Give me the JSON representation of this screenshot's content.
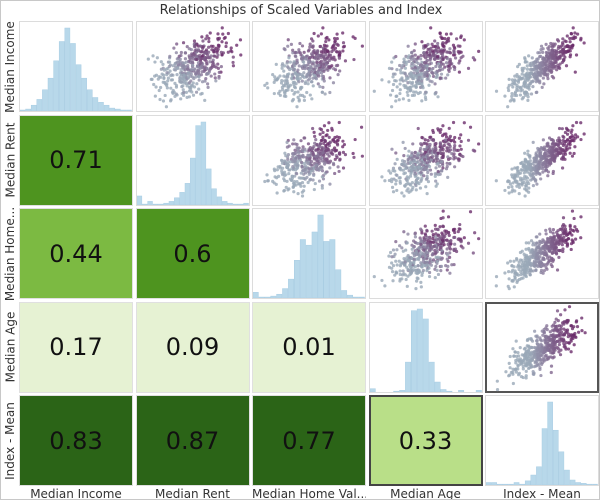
{
  "chart_data": {
    "type": "scatter-matrix",
    "title": "Relationships of Scaled Variables and Index",
    "variables": [
      "Median Income",
      "Median Rent",
      "Median Home Value",
      "Median Age",
      "Index - Mean"
    ],
    "x_labels": [
      "Median Income",
      "Median Rent",
      "Median Home Val...",
      "Median Age",
      "Index - Mean"
    ],
    "y_labels": [
      "Median Income",
      "Median Rent",
      "Median Home...",
      "Median Age",
      "Index - Mean"
    ],
    "correlations": [
      {
        "row": 1,
        "col": 0,
        "value": "0.71"
      },
      {
        "row": 2,
        "col": 0,
        "value": "0.44"
      },
      {
        "row": 2,
        "col": 1,
        "value": "0.6"
      },
      {
        "row": 3,
        "col": 0,
        "value": "0.17"
      },
      {
        "row": 3,
        "col": 1,
        "value": "0.09"
      },
      {
        "row": 3,
        "col": 2,
        "value": "0.01"
      },
      {
        "row": 4,
        "col": 0,
        "value": "0.83"
      },
      {
        "row": 4,
        "col": 1,
        "value": "0.87"
      },
      {
        "row": 4,
        "col": 2,
        "value": "0.77"
      },
      {
        "row": 4,
        "col": 3,
        "value": "0.33"
      }
    ],
    "histograms": [
      [
        1,
        2,
        6,
        12,
        22,
        34,
        52,
        72,
        86,
        70,
        48,
        34,
        22,
        14,
        9,
        6,
        3,
        2,
        1,
        1
      ],
      [
        10,
        1,
        4,
        1,
        1,
        2,
        4,
        8,
        14,
        24,
        52,
        88,
        92,
        40,
        18,
        9,
        4,
        2,
        1,
        1,
        2
      ],
      [
        6,
        1,
        1,
        2,
        4,
        10,
        20,
        40,
        62,
        56,
        70,
        88,
        60,
        62,
        30,
        8,
        3,
        1,
        1
      ],
      [
        4,
        0,
        0,
        0,
        1,
        2,
        36,
        98,
        100,
        88,
        36,
        12,
        3,
        1,
        0,
        2,
        0,
        0,
        2
      ],
      [
        3,
        3,
        1,
        1,
        1,
        3,
        1,
        5,
        12,
        22,
        68,
        100,
        66,
        40,
        18,
        6,
        3,
        2,
        1,
        1
      ]
    ],
    "selected_cell": {
      "row": 3,
      "col": 4
    },
    "colors": {
      "histogram": "#b8d8ea",
      "point_low": "#9aa9b8",
      "point_high": "#6b2d6b",
      "corr_scale": [
        "#e6f2d3",
        "#b9df88",
        "#7cba42",
        "#4e941f",
        "#2b6417"
      ]
    }
  }
}
